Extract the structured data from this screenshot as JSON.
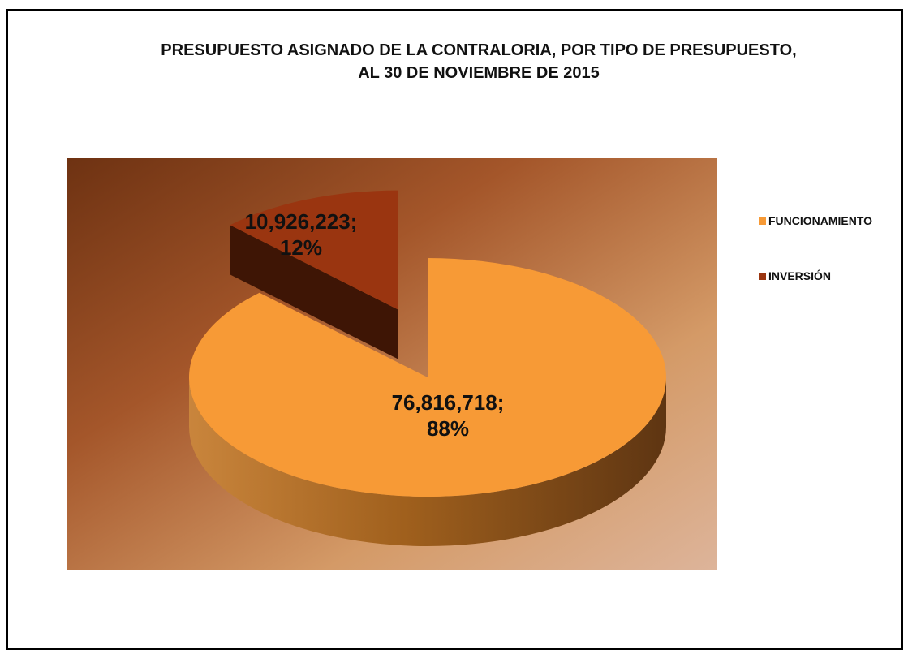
{
  "chart_data": {
    "type": "pie",
    "title_lines": [
      "PRESUPUESTO ASIGNADO DE LA CONTRALORIA, POR TIPO DE PRESUPUESTO,",
      "AL 30 DE NOVIEMBRE  DE 2015"
    ],
    "slices": [
      {
        "label": "FUNCIONAMIENTO",
        "value": 76816718,
        "value_text": "76,816,718;",
        "percent_text": "88%",
        "color": "#F79A36",
        "side_color": "#B8661E"
      },
      {
        "label": "INVERSIÓN",
        "value": 10926223,
        "value_text": "10,926,223;",
        "percent_text": "12%",
        "color": "#9A3510",
        "side_color": "#3E1505"
      }
    ],
    "exploded": [
      "INVERSIÓN"
    ],
    "view": "3d",
    "legend_position": "right",
    "background_gradient": [
      "#6E3212",
      "#A4562A",
      "#D49A67",
      "#DDB49A"
    ]
  }
}
